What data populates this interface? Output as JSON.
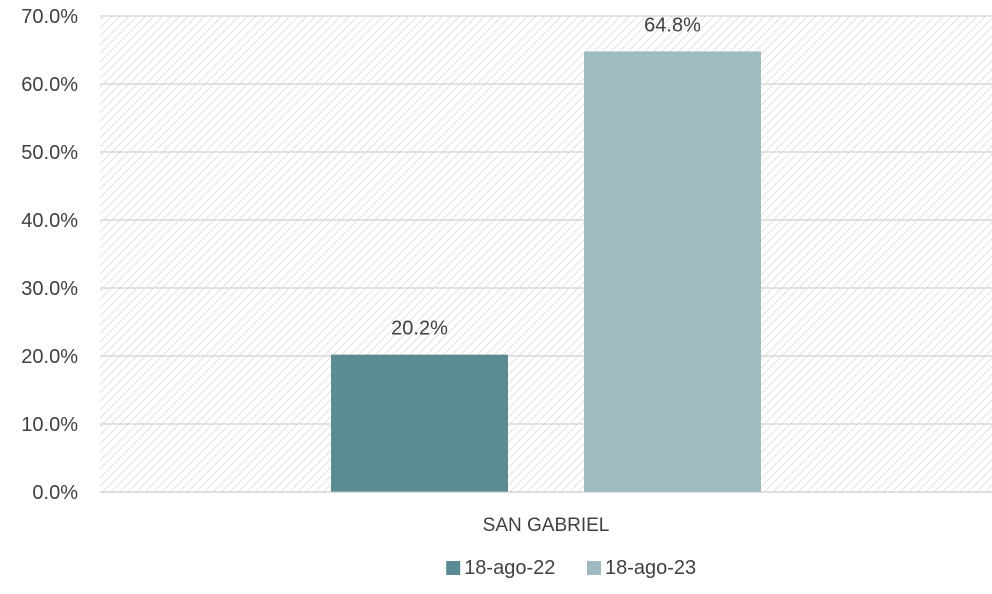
{
  "chart_data": {
    "type": "bar",
    "title": "",
    "xlabel": "",
    "ylabel": "",
    "categories": [
      "SAN GABRIEL"
    ],
    "series": [
      {
        "name": "18-ago-22",
        "values": [
          20.2
        ],
        "labels": [
          "20.2%"
        ],
        "color": "#5b8b93"
      },
      {
        "name": "18-ago-23",
        "values": [
          64.8
        ],
        "labels": [
          "64.8%"
        ],
        "color": "#9fbbc2"
      }
    ],
    "ylim": [
      0,
      70
    ],
    "yticks": [
      0,
      10,
      20,
      30,
      40,
      50,
      60,
      70
    ],
    "ytick_labels": [
      "0.0%",
      "10.0%",
      "20.0%",
      "30.0%",
      "40.0%",
      "50.0%",
      "60.0%",
      "70.0%"
    ],
    "grid": true,
    "legend": "bottom-center",
    "plot_background": "hatched"
  }
}
